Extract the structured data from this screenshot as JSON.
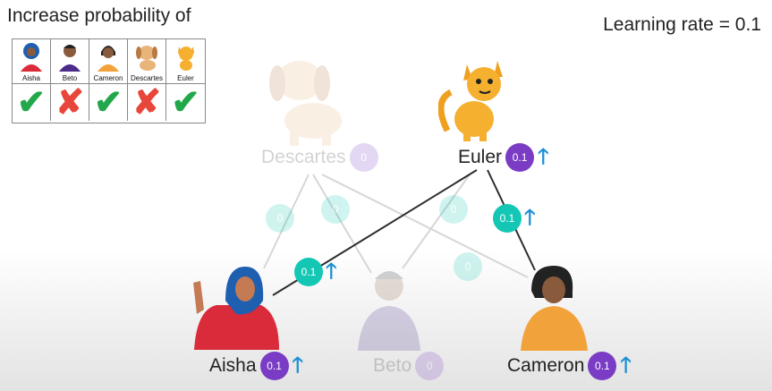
{
  "header": {
    "title": "Increase probability of",
    "learning_rate": "Learning rate = 0.1"
  },
  "table": {
    "people": [
      {
        "name": "Aisha",
        "mark": "check"
      },
      {
        "name": "Beto",
        "mark": "cross"
      },
      {
        "name": "Cameron",
        "mark": "check"
      },
      {
        "name": "Descartes",
        "mark": "cross"
      },
      {
        "name": "Euler",
        "mark": "check"
      }
    ],
    "check_glyph": "✔",
    "cross_glyph": "✘"
  },
  "nodes": {
    "descartes": {
      "name": "Descartes",
      "value": "0"
    },
    "euler": {
      "name": "Euler",
      "value": "0.1"
    },
    "aisha": {
      "name": "Aisha",
      "value": "0.1"
    },
    "beto": {
      "name": "Beto",
      "value": "0"
    },
    "cameron": {
      "name": "Cameron",
      "value": "0.1"
    }
  },
  "edges": {
    "euler_aisha": "0.1",
    "euler_cameron": "0.1",
    "faded_1": "0",
    "faded_2": "0",
    "faded_3": "0",
    "faded_4": "0"
  },
  "arrow_glyph": "🡑",
  "colors": {
    "purple": "#7a3cc4",
    "teal": "#14c7b5",
    "arrow": "#1e8fd6",
    "check": "#22a84a",
    "cross": "#e8463a"
  }
}
